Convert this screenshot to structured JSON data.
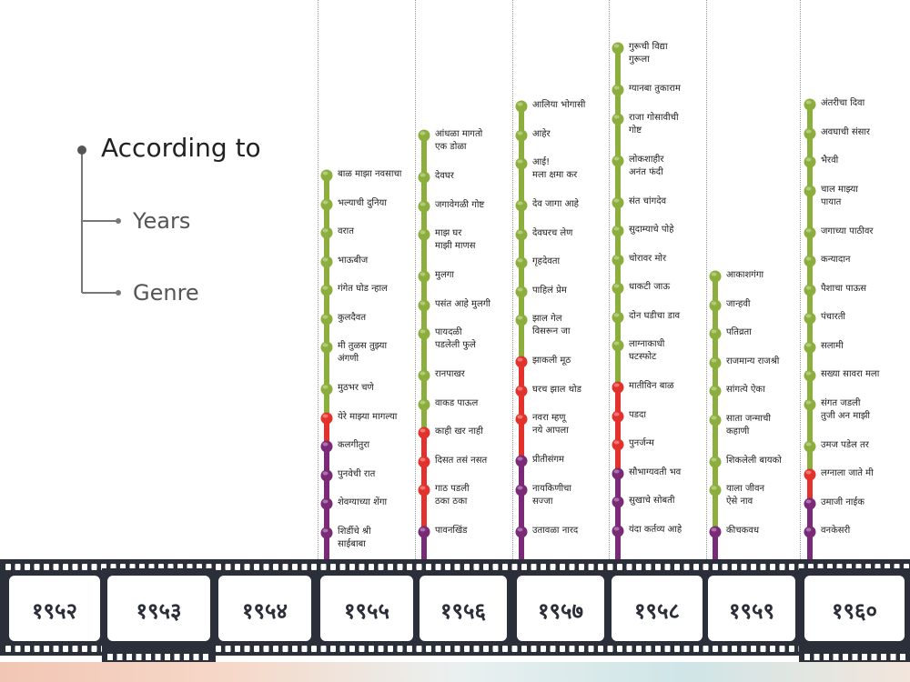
{
  "tree": {
    "title": "According to",
    "options": [
      "Years",
      "Genre"
    ]
  },
  "colors": {
    "green": "#8cae3c",
    "red": "#e3322b",
    "purple": "#7b2a78",
    "film": "#2b2f39",
    "frame": "#ffffff"
  },
  "chart_data": {
    "type": "timeline",
    "years": [
      {
        "label": "१९५२",
        "films": []
      },
      {
        "label": "१९५३",
        "films": []
      },
      {
        "label": "१९५४",
        "films": []
      },
      {
        "label": "१९५५",
        "films": [
          {
            "title": "बाळ माझा नवसाचा",
            "genre": "green"
          },
          {
            "title": "भल्याची दुनिया",
            "genre": "green"
          },
          {
            "title": "वरात",
            "genre": "green"
          },
          {
            "title": "भाऊबीज",
            "genre": "green"
          },
          {
            "title": "गंगेत घोड न्हाल",
            "genre": "green"
          },
          {
            "title": "कुलदैवत",
            "genre": "green"
          },
          {
            "title": "मी तुळस तुझ्या\nअंगणी",
            "genre": "green"
          },
          {
            "title": "मुठभर चणे",
            "genre": "green"
          },
          {
            "title": "येरे माझ्या मागल्या",
            "genre": "red"
          },
          {
            "title": "कलगीतुरा",
            "genre": "purple"
          },
          {
            "title": "पुनवेची रात",
            "genre": "purple"
          },
          {
            "title": "शेवग्याच्या शेंगा",
            "genre": "purple"
          },
          {
            "title": "शिर्डीचे श्री\nसाईबाबा",
            "genre": "purple"
          }
        ]
      },
      {
        "label": "१९५६",
        "films": [
          {
            "title": "आंधळा मागतो\nएक डोळा",
            "genre": "green"
          },
          {
            "title": "देवघर",
            "genre": "green"
          },
          {
            "title": "जगावेगळी गोष्ट",
            "genre": "green"
          },
          {
            "title": "माझ घर\nमाझी माणस",
            "genre": "green"
          },
          {
            "title": "मुलगा",
            "genre": "green"
          },
          {
            "title": "पसंत आहे मुलगी",
            "genre": "green"
          },
          {
            "title": "पायदळी\nपडलेली फुले",
            "genre": "green"
          },
          {
            "title": "रानपाखर",
            "genre": "green"
          },
          {
            "title": "वाकड पाऊल",
            "genre": "green"
          },
          {
            "title": "काही खर नाही",
            "genre": "red"
          },
          {
            "title": "दिसत तसं नसत",
            "genre": "red"
          },
          {
            "title": "गाठ पडली\nठका ठका",
            "genre": "red"
          },
          {
            "title": "पावनखिंड",
            "genre": "purple"
          }
        ]
      },
      {
        "label": "१९५७",
        "films": [
          {
            "title": "आलिया भोगासी",
            "genre": "green"
          },
          {
            "title": "आहेर",
            "genre": "green"
          },
          {
            "title": "आई!\nमला क्षमा कर",
            "genre": "green"
          },
          {
            "title": "देव जागा आहे",
            "genre": "green"
          },
          {
            "title": "देवघरच लेण",
            "genre": "green"
          },
          {
            "title": "गृहदेवता",
            "genre": "green"
          },
          {
            "title": "पाहिलं प्रेम",
            "genre": "green"
          },
          {
            "title": "झाल गेल\nविसरून जा",
            "genre": "green"
          },
          {
            "title": "झाकली मूठ",
            "genre": "red"
          },
          {
            "title": "घरच झाल थोड",
            "genre": "red"
          },
          {
            "title": "नवरा म्हणू\nनये आपला",
            "genre": "red"
          },
          {
            "title": "प्रीतीसंगम",
            "genre": "purple"
          },
          {
            "title": "नायकिणीचा\nसज्जा",
            "genre": "purple"
          },
          {
            "title": "उतावळा नारद",
            "genre": "purple"
          }
        ]
      },
      {
        "label": "१९५८",
        "films": [
          {
            "title": "गुरूची विद्या\nगुरूला",
            "genre": "green"
          },
          {
            "title": "ग्यानबा तुकाराम",
            "genre": "green"
          },
          {
            "title": "राजा गोसावीची\nगोष्ट",
            "genre": "green"
          },
          {
            "title": "लोकशाहीर\nअनंत फंदी",
            "genre": "green"
          },
          {
            "title": "संत चांगदेव",
            "genre": "green"
          },
          {
            "title": "सुदाम्याचे पोहे",
            "genre": "green"
          },
          {
            "title": "चोरावर मोर",
            "genre": "green"
          },
          {
            "title": "धाकटी जाऊ",
            "genre": "green"
          },
          {
            "title": "दोन घडीचा डाव",
            "genre": "green"
          },
          {
            "title": "लाग्नाकाधी\nघटस्फोट",
            "genre": "green"
          },
          {
            "title": "मातीविन बाळ",
            "genre": "red"
          },
          {
            "title": "पडदा",
            "genre": "red"
          },
          {
            "title": "पुनर्जन्म",
            "genre": "red"
          },
          {
            "title": "सौभाग्यवती भव",
            "genre": "purple"
          },
          {
            "title": "सुखाचे सोबती",
            "genre": "purple"
          },
          {
            "title": "यंदा कर्तव्य आहे",
            "genre": "purple"
          }
        ]
      },
      {
        "label": "१९५९",
        "films": [
          {
            "title": "आकाशगंगा",
            "genre": "green"
          },
          {
            "title": "जान्हवी",
            "genre": "green"
          },
          {
            "title": "पतिव्रता",
            "genre": "green"
          },
          {
            "title": "राजमान्य राजश्री",
            "genre": "green"
          },
          {
            "title": "सांगत्ये ऐका",
            "genre": "green"
          },
          {
            "title": "साता जन्माची\nकहाणी",
            "genre": "green"
          },
          {
            "title": "शिकलेली बायको",
            "genre": "green"
          },
          {
            "title": "याला जीवन\nऐसे नाव",
            "genre": "green"
          },
          {
            "title": "कीचकवध",
            "genre": "purple"
          }
        ]
      },
      {
        "label": "१९६०",
        "films": [
          {
            "title": "अंतरीचा दिवा",
            "genre": "green"
          },
          {
            "title": "अवघाची संसार",
            "genre": "green"
          },
          {
            "title": "भैरवी",
            "genre": "green"
          },
          {
            "title": "चाल माझ्या\nपायात",
            "genre": "green"
          },
          {
            "title": "जगाच्या पाठीवर",
            "genre": "green"
          },
          {
            "title": "कन्यादान",
            "genre": "green"
          },
          {
            "title": "पैशाचा पाऊस",
            "genre": "green"
          },
          {
            "title": "पंचारती",
            "genre": "green"
          },
          {
            "title": "सलामी",
            "genre": "green"
          },
          {
            "title": "सख्या सावरा मला",
            "genre": "green"
          },
          {
            "title": "संगत जडली\nतुजी अन माझी",
            "genre": "green"
          },
          {
            "title": "उमज पडेल तर",
            "genre": "green"
          },
          {
            "title": "लग्नाला जाते मी",
            "genre": "red"
          },
          {
            "title": "उमाजी नाईक",
            "genre": "purple"
          },
          {
            "title": "वनकेसरी",
            "genre": "purple"
          }
        ]
      }
    ]
  }
}
